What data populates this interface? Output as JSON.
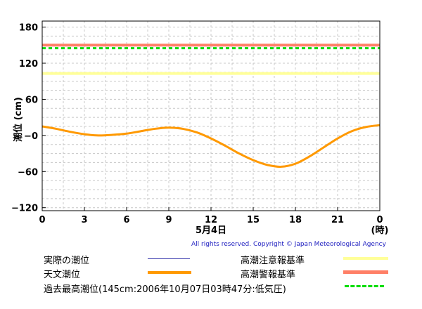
{
  "chart_data": {
    "type": "line",
    "ylabel": "潮位 (cm)",
    "xlabel_date": "5月4日",
    "xlabel_unit": "(時)",
    "xlim": [
      0,
      24
    ],
    "ylim": [
      -125,
      190
    ],
    "x_ticks": [
      "0",
      "3",
      "6",
      "9",
      "12",
      "15",
      "18",
      "21",
      "0"
    ],
    "x_tick_values": [
      0,
      3,
      6,
      9,
      12,
      15,
      18,
      21,
      24
    ],
    "y_ticks": [
      "180",
      "120",
      "60",
      "−0",
      "−60",
      "−120"
    ],
    "y_tick_values": [
      180,
      120,
      60,
      0,
      -60,
      -120
    ],
    "grid": true,
    "series": [
      {
        "name": "天文潮位",
        "color": "#ff9900",
        "x": [
          0,
          1,
          2,
          3,
          4,
          5,
          6,
          7,
          8,
          9,
          10,
          11,
          12,
          13,
          14,
          15,
          16,
          17,
          18,
          19,
          20,
          21,
          22,
          23,
          24
        ],
        "values": [
          15,
          11,
          6,
          2,
          0,
          1,
          3,
          7,
          11,
          13,
          11,
          5,
          -5,
          -17,
          -30,
          -41,
          -49,
          -52,
          -47,
          -35,
          -20,
          -5,
          7,
          14,
          17
        ]
      }
    ],
    "reference_lines": [
      {
        "name": "高潮警報基準",
        "value": 150,
        "color": "#ff7f66",
        "style": "solid"
      },
      {
        "name": "過去最高潮位",
        "value": 145,
        "color": "#00dd00",
        "style": "dashed"
      },
      {
        "name": "高潮注意報基準",
        "value": 103,
        "color": "#ffff99",
        "style": "solid"
      }
    ]
  },
  "copyright": "All rights reserved. Copyright © Japan Meteorological Agency",
  "legend": {
    "actual": {
      "label": "実際の潮位",
      "color": "#3333aa"
    },
    "astronomical": {
      "label": "天文潮位",
      "color": "#ff9900"
    },
    "record": {
      "label": "過去最高潮位(145cm:2006年10月07日03時47分:低気圧)",
      "color": "#00dd00"
    },
    "advisory": {
      "label": "高潮注意報基準",
      "color": "#ffff99"
    },
    "warning": {
      "label": "高潮警報基準",
      "color": "#ff7f66"
    }
  }
}
